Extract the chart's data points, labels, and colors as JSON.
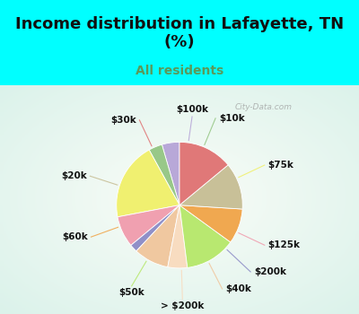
{
  "title": "Income distribution in Lafayette, TN\n(%)",
  "subtitle": "All residents",
  "bg_cyan": "#00FFFF",
  "bg_pie_color": "#c8ecd8",
  "labels": [
    "$100k",
    "$10k",
    "$75k",
    "$125k",
    "$200k",
    "$40k",
    "> $200k",
    "$50k",
    "$60k",
    "$20k",
    "$30k"
  ],
  "sizes": [
    4.5,
    3.5,
    20,
    8,
    2,
    9,
    5,
    13,
    9,
    12,
    14
  ],
  "colors": [
    "#b8a8d8",
    "#98c888",
    "#f0f070",
    "#f0a0b0",
    "#9090c8",
    "#f0c8a0",
    "#f8dcc0",
    "#b8e870",
    "#f0a850",
    "#c8c098",
    "#e07878"
  ],
  "startangle": 90,
  "watermark": "City-Data.com",
  "title_fontsize": 13,
  "subtitle_fontsize": 10,
  "label_fontsize": 7.5
}
